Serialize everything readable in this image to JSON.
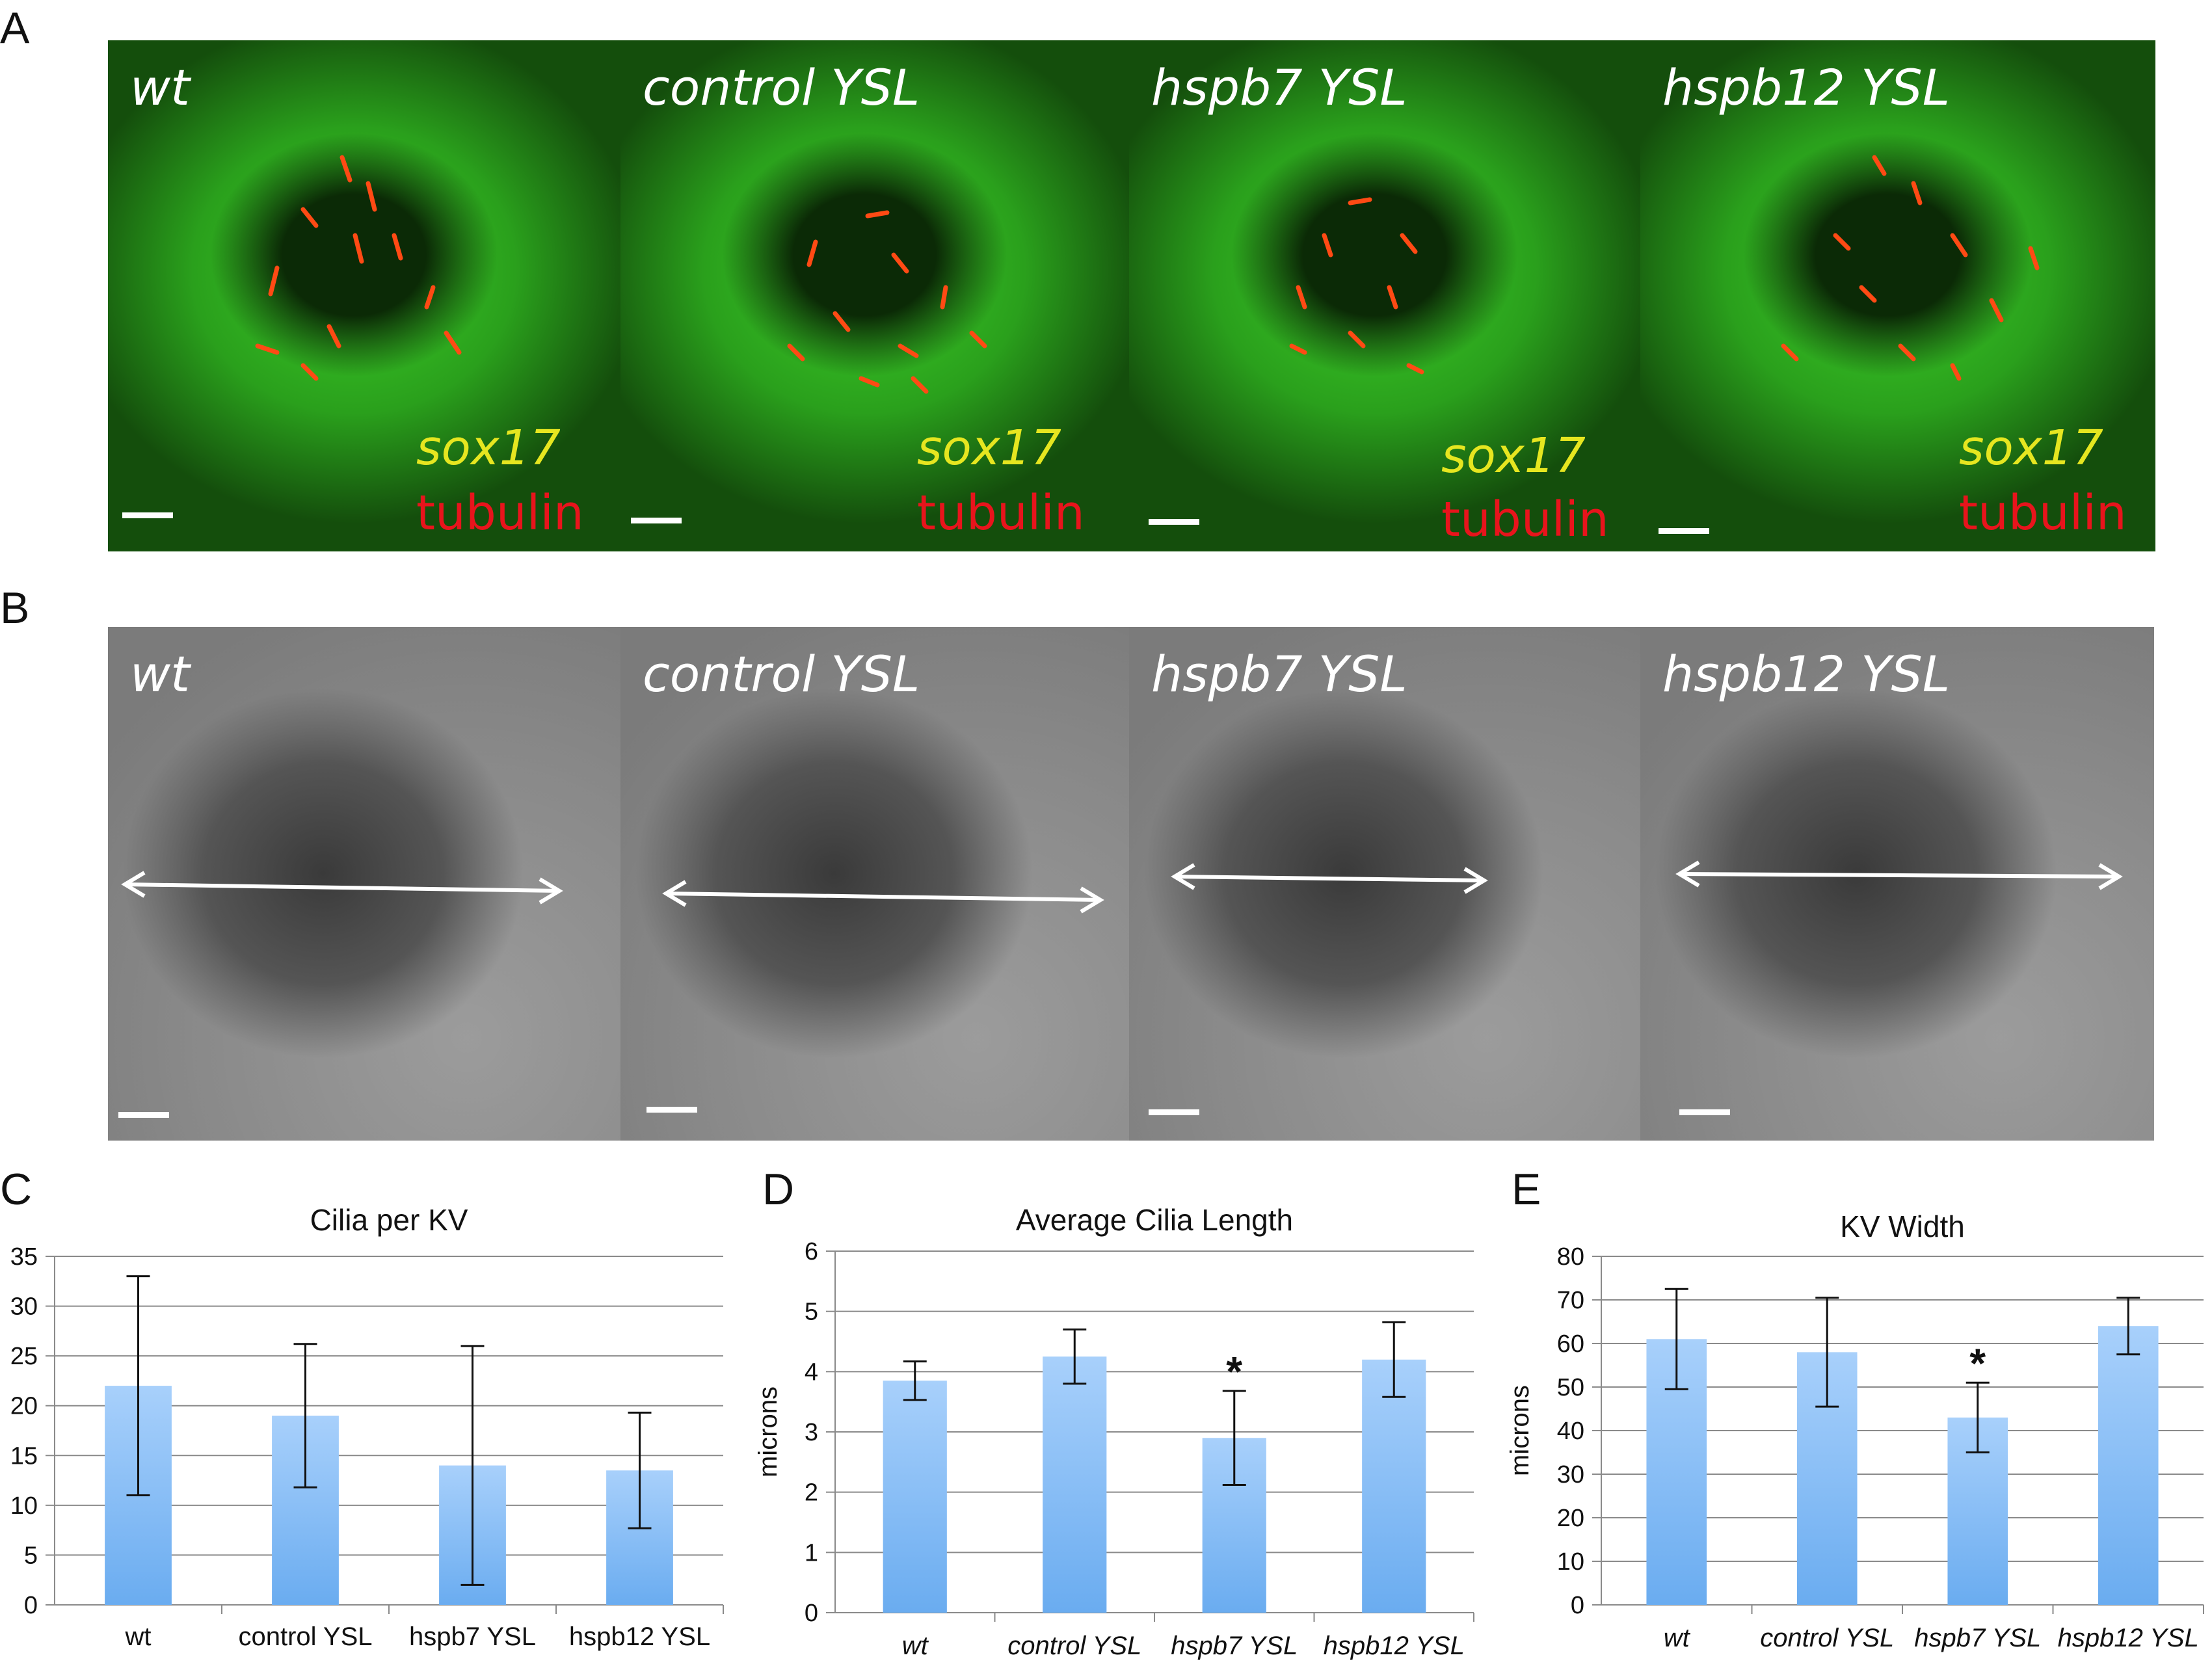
{
  "panel_letters": {
    "a": "A",
    "b": "B",
    "c": "C",
    "d": "D",
    "e": "E"
  },
  "row_a": {
    "panels": [
      {
        "label": "wt",
        "stain1": "sox17",
        "stain2": "tubulin"
      },
      {
        "label": "control YSL",
        "stain1": "sox17",
        "stain2": "tubulin"
      },
      {
        "label": "hspb7 YSL",
        "stain1": "sox17",
        "stain2": "tubulin"
      },
      {
        "label": "hspb12 YSL",
        "stain1": "sox17",
        "stain2": "tubulin"
      }
    ],
    "colors": {
      "green": "#3ccc28",
      "red": "#e8141c",
      "yellow": "#e6e620"
    }
  },
  "row_b": {
    "panels": [
      {
        "label": "wt"
      },
      {
        "label": "control YSL"
      },
      {
        "label": "hspb7 YSL"
      },
      {
        "label": "hspb12 YSL"
      }
    ]
  },
  "chart_data": [
    {
      "type": "bar",
      "title": "Cilia per KV",
      "ylabel": "",
      "italic_categories": false,
      "categories": [
        "wt",
        "control YSL",
        "hspb7 YSL",
        "hspb12 YSL"
      ],
      "values": [
        22,
        19,
        14,
        13.5
      ],
      "errors": [
        11,
        7.2,
        12,
        5.8
      ],
      "significant": [
        false,
        false,
        false,
        false
      ],
      "ylim": [
        0,
        35
      ],
      "yticks": [
        0,
        5,
        10,
        15,
        20,
        25,
        30,
        35
      ],
      "grid": true,
      "bar_color": "#6aacf0"
    },
    {
      "type": "bar",
      "title": "Average Cilia Length",
      "ylabel": "microns",
      "italic_categories": true,
      "categories": [
        "wt",
        "control YSL",
        "hspb7 YSL",
        "hspb12 YSL"
      ],
      "values": [
        3.85,
        4.25,
        2.9,
        4.2
      ],
      "errors": [
        0.32,
        0.45,
        0.78,
        0.62
      ],
      "significant": [
        false,
        false,
        true,
        false
      ],
      "significance_mark": "*",
      "ylim": [
        0,
        6
      ],
      "yticks": [
        0,
        1,
        2,
        3,
        4,
        5,
        6
      ],
      "grid": true,
      "bar_color": "#6aacf0"
    },
    {
      "type": "bar",
      "title": "KV Width",
      "ylabel": "microns",
      "italic_categories": true,
      "categories": [
        "wt",
        "control YSL",
        "hspb7 YSL",
        "hspb12 YSL"
      ],
      "values": [
        61,
        58,
        43,
        64
      ],
      "errors": [
        11.5,
        12.5,
        8,
        6.5
      ],
      "significant": [
        false,
        false,
        true,
        false
      ],
      "significance_mark": "*",
      "ylim": [
        0,
        80
      ],
      "yticks": [
        0,
        10,
        20,
        30,
        40,
        50,
        60,
        70,
        80
      ],
      "grid": true,
      "bar_color": "#6aacf0"
    }
  ]
}
